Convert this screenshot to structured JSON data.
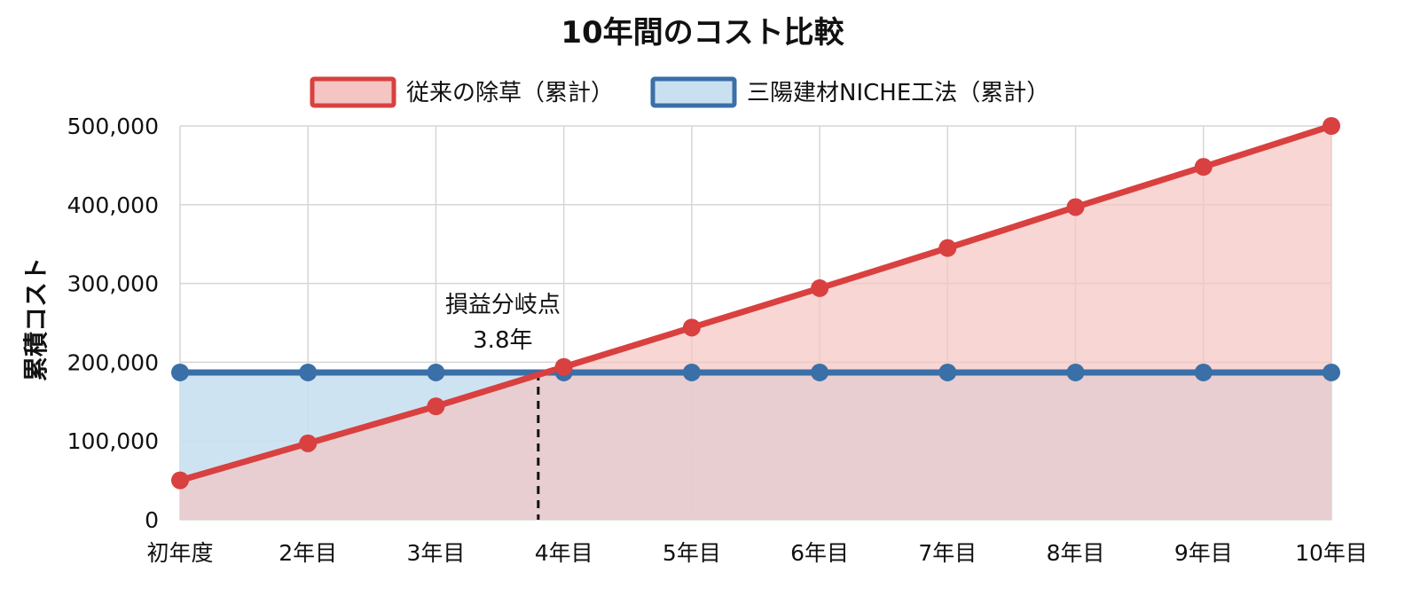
{
  "chart_data": {
    "type": "line",
    "title": "10年間のコスト比較",
    "ylabel": "累積コスト",
    "xlabel": "",
    "categories": [
      "初年度",
      "2年目",
      "3年目",
      "4年目",
      "5年目",
      "6年目",
      "7年目",
      "8年目",
      "9年目",
      "10年目"
    ],
    "ylim": [
      0,
      500000
    ],
    "yticks": [
      "0",
      "100,000",
      "200,000",
      "300,000",
      "400,000",
      "500,000"
    ],
    "ytick_values": [
      0,
      100000,
      200000,
      300000,
      400000,
      500000
    ],
    "grid": true,
    "legend_position": "top",
    "series": [
      {
        "name": "従来の除草（累計）",
        "color": "#d94040",
        "fill": "#f4c5c2",
        "values": [
          50000,
          97000,
          144000,
          194000,
          244000,
          294000,
          345000,
          397000,
          448000,
          500000
        ]
      },
      {
        "name": "三陽建材NICHE工法（累計）",
        "color": "#3a6fa8",
        "fill": "#c9e0f0",
        "values": [
          187000,
          187000,
          187000,
          187000,
          187000,
          187000,
          187000,
          187000,
          187000,
          187000
        ]
      }
    ],
    "annotation": {
      "label": "損益分岐点",
      "value_label": "3.8年",
      "x_position": 3.8
    }
  }
}
